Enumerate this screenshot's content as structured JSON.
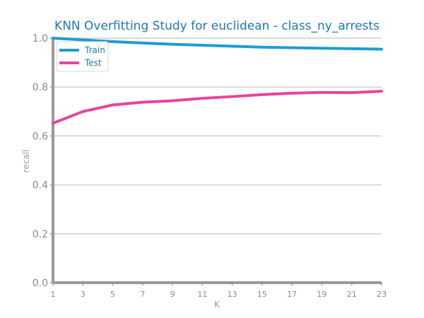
{
  "chart_data": {
    "type": "line",
    "title": "KNN Overfitting Study for euclidean - class_ny_arrests",
    "xlabel": "K",
    "ylabel": "recall",
    "x": [
      1,
      3,
      5,
      7,
      9,
      11,
      13,
      15,
      17,
      19,
      21,
      23
    ],
    "xticks": [
      "1",
      "3",
      "5",
      "7",
      "9",
      "11",
      "13",
      "15",
      "17",
      "19",
      "21",
      "23"
    ],
    "yticks": [
      "0.0",
      "0.2",
      "0.4",
      "0.6",
      "0.8",
      "1.0"
    ],
    "ylim": [
      0,
      1
    ],
    "grid": "horizontal",
    "legend_position": "top-left",
    "series": [
      {
        "name": "Train",
        "color": "#1f9bd7",
        "values": [
          1.0,
          0.993,
          0.986,
          0.98,
          0.975,
          0.971,
          0.967,
          0.963,
          0.961,
          0.959,
          0.957,
          0.955
        ]
      },
      {
        "name": "Test",
        "color": "#e8449c",
        "values": [
          0.652,
          0.7,
          0.727,
          0.738,
          0.744,
          0.754,
          0.761,
          0.769,
          0.775,
          0.778,
          0.777,
          0.783
        ]
      }
    ]
  }
}
